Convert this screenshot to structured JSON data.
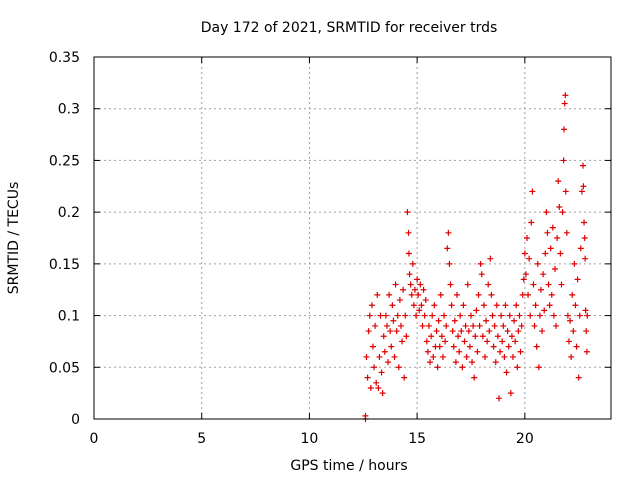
{
  "chart_data": {
    "type": "scatter",
    "title": "Day 172 of 2021, SRMTID for receiver trds",
    "xlabel": "GPS time / hours",
    "ylabel": "SRMTID / TECUs",
    "xlim": [
      0,
      24
    ],
    "ylim": [
      0,
      0.35
    ],
    "xticks": [
      0,
      5,
      10,
      15,
      20
    ],
    "xtick_labels": [
      "0",
      "5",
      "10",
      "15",
      "20"
    ],
    "yticks": [
      0,
      0.05,
      0.1,
      0.15,
      0.2,
      0.25,
      0.3,
      0.35
    ],
    "ytick_labels": [
      "0",
      "0.05",
      "0.1",
      "0.15",
      "0.2",
      "0.25",
      "0.3",
      "0.35"
    ],
    "grid": true,
    "marker": "+",
    "series": [
      {
        "name": "SRMTID",
        "color": "#e00000",
        "points": [
          [
            12.6,
            0.0
          ],
          [
            12.6,
            0.003
          ],
          [
            12.65,
            0.06
          ],
          [
            12.7,
            0.04
          ],
          [
            12.75,
            0.085
          ],
          [
            12.8,
            0.1
          ],
          [
            12.85,
            0.03
          ],
          [
            12.9,
            0.11
          ],
          [
            12.95,
            0.07
          ],
          [
            13.0,
            0.05
          ],
          [
            13.05,
            0.09
          ],
          [
            13.1,
            0.035
          ],
          [
            13.15,
            0.12
          ],
          [
            13.2,
            0.03
          ],
          [
            13.25,
            0.06
          ],
          [
            13.3,
            0.1
          ],
          [
            13.35,
            0.045
          ],
          [
            13.4,
            0.025
          ],
          [
            13.45,
            0.08
          ],
          [
            13.5,
            0.065
          ],
          [
            13.55,
            0.1
          ],
          [
            13.6,
            0.09
          ],
          [
            13.65,
            0.055
          ],
          [
            13.7,
            0.12
          ],
          [
            13.75,
            0.085
          ],
          [
            13.8,
            0.07
          ],
          [
            13.85,
            0.11
          ],
          [
            13.9,
            0.095
          ],
          [
            13.95,
            0.06
          ],
          [
            14.0,
            0.13
          ],
          [
            14.05,
            0.085
          ],
          [
            14.1,
            0.1
          ],
          [
            14.15,
            0.05
          ],
          [
            14.2,
            0.115
          ],
          [
            14.25,
            0.09
          ],
          [
            14.3,
            0.075
          ],
          [
            14.35,
            0.125
          ],
          [
            14.4,
            0.04
          ],
          [
            14.45,
            0.1
          ],
          [
            14.5,
            0.08
          ],
          [
            14.55,
            0.2
          ],
          [
            14.6,
            0.18
          ],
          [
            14.62,
            0.16
          ],
          [
            14.65,
            0.14
          ],
          [
            14.7,
            0.13
          ],
          [
            14.75,
            0.12
          ],
          [
            14.8,
            0.15
          ],
          [
            14.85,
            0.11
          ],
          [
            14.9,
            0.125
          ],
          [
            14.95,
            0.1
          ],
          [
            15.0,
            0.135
          ],
          [
            15.05,
            0.12
          ],
          [
            15.1,
            0.105
          ],
          [
            15.15,
            0.13
          ],
          [
            15.2,
            0.11
          ],
          [
            15.25,
            0.09
          ],
          [
            15.3,
            0.125
          ],
          [
            15.35,
            0.1
          ],
          [
            15.4,
            0.115
          ],
          [
            15.45,
            0.075
          ],
          [
            15.5,
            0.065
          ],
          [
            15.55,
            0.09
          ],
          [
            15.6,
            0.055
          ],
          [
            15.65,
            0.08
          ],
          [
            15.7,
            0.1
          ],
          [
            15.75,
            0.06
          ],
          [
            15.8,
            0.11
          ],
          [
            15.85,
            0.07
          ],
          [
            15.9,
            0.085
          ],
          [
            15.95,
            0.05
          ],
          [
            16.0,
            0.095
          ],
          [
            16.05,
            0.07
          ],
          [
            16.1,
            0.12
          ],
          [
            16.15,
            0.08
          ],
          [
            16.2,
            0.06
          ],
          [
            16.25,
            0.1
          ],
          [
            16.3,
            0.075
          ],
          [
            16.35,
            0.09
          ],
          [
            16.4,
            0.165
          ],
          [
            16.45,
            0.18
          ],
          [
            16.5,
            0.15
          ],
          [
            16.55,
            0.13
          ],
          [
            16.6,
            0.11
          ],
          [
            16.65,
            0.085
          ],
          [
            16.7,
            0.07
          ],
          [
            16.75,
            0.095
          ],
          [
            16.8,
            0.055
          ],
          [
            16.85,
            0.12
          ],
          [
            16.9,
            0.08
          ],
          [
            16.95,
            0.065
          ],
          [
            17.0,
            0.1
          ],
          [
            17.05,
            0.085
          ],
          [
            17.1,
            0.05
          ],
          [
            17.15,
            0.11
          ],
          [
            17.2,
            0.075
          ],
          [
            17.25,
            0.09
          ],
          [
            17.3,
            0.06
          ],
          [
            17.35,
            0.13
          ],
          [
            17.4,
            0.085
          ],
          [
            17.45,
            0.07
          ],
          [
            17.5,
            0.1
          ],
          [
            17.55,
            0.055
          ],
          [
            17.6,
            0.09
          ],
          [
            17.65,
            0.04
          ],
          [
            17.7,
            0.08
          ],
          [
            17.75,
            0.105
          ],
          [
            17.8,
            0.065
          ],
          [
            17.85,
            0.12
          ],
          [
            17.9,
            0.09
          ],
          [
            17.95,
            0.15
          ],
          [
            18.0,
            0.14
          ],
          [
            18.05,
            0.08
          ],
          [
            18.1,
            0.11
          ],
          [
            18.15,
            0.06
          ],
          [
            18.2,
            0.095
          ],
          [
            18.25,
            0.075
          ],
          [
            18.3,
            0.13
          ],
          [
            18.35,
            0.085
          ],
          [
            18.4,
            0.155
          ],
          [
            18.45,
            0.12
          ],
          [
            18.5,
            0.1
          ],
          [
            18.55,
            0.07
          ],
          [
            18.6,
            0.09
          ],
          [
            18.65,
            0.055
          ],
          [
            18.7,
            0.11
          ],
          [
            18.75,
            0.08
          ],
          [
            18.8,
            0.02
          ],
          [
            18.85,
            0.065
          ],
          [
            18.9,
            0.1
          ],
          [
            18.95,
            0.075
          ],
          [
            19.0,
            0.09
          ],
          [
            19.05,
            0.06
          ],
          [
            19.1,
            0.11
          ],
          [
            19.15,
            0.045
          ],
          [
            19.2,
            0.085
          ],
          [
            19.25,
            0.07
          ],
          [
            19.3,
            0.1
          ],
          [
            19.35,
            0.025
          ],
          [
            19.4,
            0.08
          ],
          [
            19.45,
            0.06
          ],
          [
            19.5,
            0.095
          ],
          [
            19.55,
            0.075
          ],
          [
            19.6,
            0.11
          ],
          [
            19.65,
            0.05
          ],
          [
            19.7,
            0.085
          ],
          [
            19.75,
            0.1
          ],
          [
            19.8,
            0.065
          ],
          [
            19.85,
            0.09
          ],
          [
            19.9,
            0.12
          ],
          [
            19.95,
            0.135
          ],
          [
            20.0,
            0.16
          ],
          [
            20.05,
            0.14
          ],
          [
            20.1,
            0.175
          ],
          [
            20.15,
            0.12
          ],
          [
            20.2,
            0.155
          ],
          [
            20.25,
            0.1
          ],
          [
            20.3,
            0.19
          ],
          [
            20.35,
            0.22
          ],
          [
            20.4,
            0.13
          ],
          [
            20.45,
            0.09
          ],
          [
            20.5,
            0.11
          ],
          [
            20.55,
            0.07
          ],
          [
            20.6,
            0.15
          ],
          [
            20.65,
            0.05
          ],
          [
            20.7,
            0.1
          ],
          [
            20.75,
            0.125
          ],
          [
            20.8,
            0.085
          ],
          [
            20.85,
            0.14
          ],
          [
            20.9,
            0.105
          ],
          [
            20.95,
            0.16
          ],
          [
            21.0,
            0.2
          ],
          [
            21.05,
            0.18
          ],
          [
            21.1,
            0.13
          ],
          [
            21.15,
            0.11
          ],
          [
            21.2,
            0.165
          ],
          [
            21.25,
            0.12
          ],
          [
            21.3,
            0.185
          ],
          [
            21.35,
            0.1
          ],
          [
            21.4,
            0.145
          ],
          [
            21.45,
            0.09
          ],
          [
            21.5,
            0.175
          ],
          [
            21.55,
            0.23
          ],
          [
            21.6,
            0.205
          ],
          [
            21.65,
            0.16
          ],
          [
            21.7,
            0.13
          ],
          [
            21.75,
            0.2
          ],
          [
            21.8,
            0.25
          ],
          [
            21.82,
            0.28
          ],
          [
            21.85,
            0.305
          ],
          [
            21.88,
            0.313
          ],
          [
            21.9,
            0.22
          ],
          [
            21.95,
            0.18
          ],
          [
            22.0,
            0.1
          ],
          [
            22.05,
            0.075
          ],
          [
            22.1,
            0.095
          ],
          [
            22.15,
            0.06
          ],
          [
            22.2,
            0.12
          ],
          [
            22.25,
            0.085
          ],
          [
            22.3,
            0.15
          ],
          [
            22.35,
            0.11
          ],
          [
            22.4,
            0.07
          ],
          [
            22.45,
            0.135
          ],
          [
            22.5,
            0.04
          ],
          [
            22.55,
            0.1
          ],
          [
            22.6,
            0.165
          ],
          [
            22.65,
            0.22
          ],
          [
            22.7,
            0.245
          ],
          [
            22.72,
            0.225
          ],
          [
            22.75,
            0.19
          ],
          [
            22.78,
            0.175
          ],
          [
            22.8,
            0.155
          ],
          [
            22.82,
            0.105
          ],
          [
            22.85,
            0.085
          ],
          [
            22.88,
            0.065
          ],
          [
            22.9,
            0.1
          ]
        ]
      }
    ]
  }
}
